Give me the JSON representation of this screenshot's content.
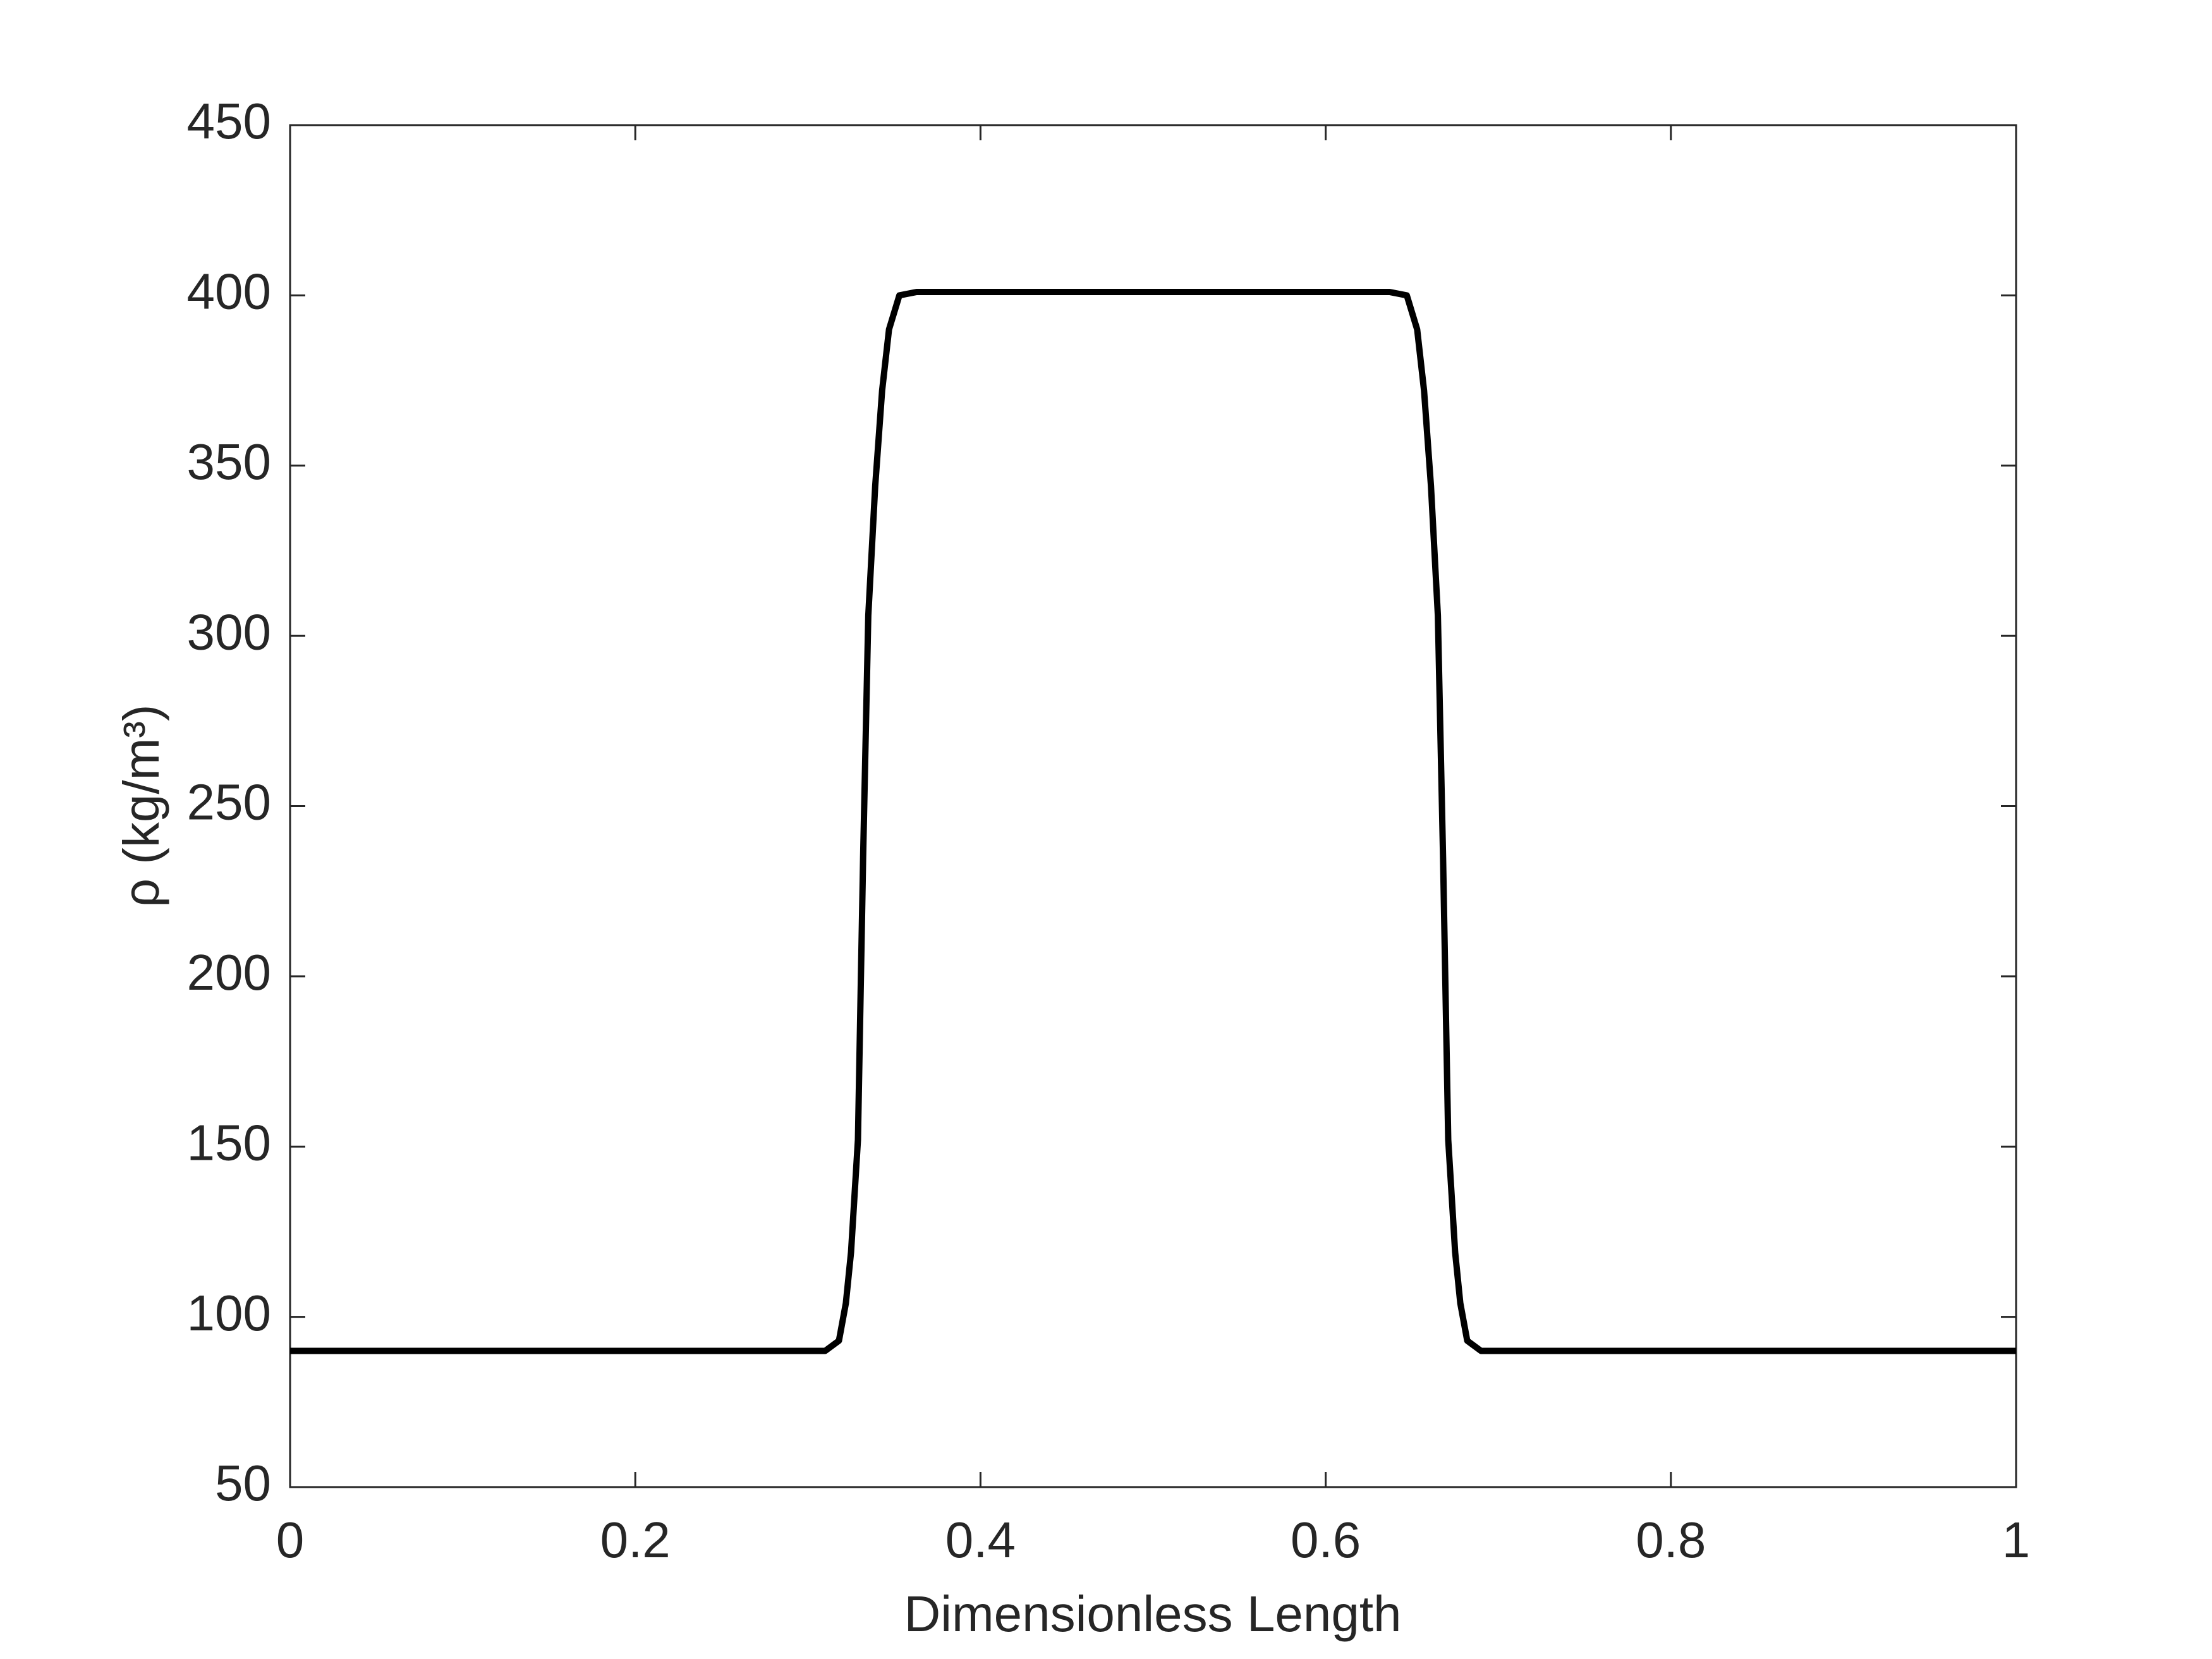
{
  "chart_data": {
    "type": "line",
    "xlabel": "Dimensionless Length",
    "ylabel": "ρ (kg/m³)",
    "x": [
      0,
      0.31,
      0.318,
      0.322,
      0.325,
      0.329,
      0.332,
      0.335,
      0.339,
      0.343,
      0.347,
      0.353,
      0.363,
      0.637,
      0.647,
      0.653,
      0.657,
      0.661,
      0.665,
      0.668,
      0.671,
      0.675,
      0.678,
      0.682,
      0.69,
      1
    ],
    "series": [
      {
        "color": "#000000",
        "values": [
          90,
          90,
          93,
          104,
          119,
          152,
          235,
          306,
          344,
          372,
          390,
          400,
          401,
          401,
          400,
          390,
          372,
          344,
          306,
          235,
          152,
          119,
          104,
          93,
          90,
          90
        ]
      }
    ],
    "xlim": [
      0,
      1
    ],
    "xticks": [
      0,
      0.2,
      0.4,
      0.6,
      0.8,
      1
    ],
    "ylim": [
      50,
      450
    ],
    "yticks": [
      50,
      100,
      150,
      200,
      250,
      300,
      350,
      400,
      450
    ],
    "grid": false
  }
}
